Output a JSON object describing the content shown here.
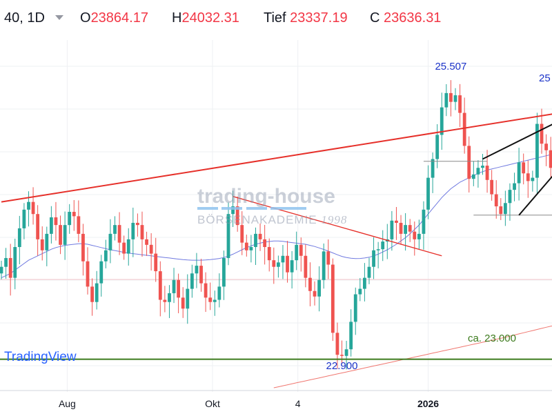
{
  "header": {
    "symbol": "40, 1D",
    "open_label": "O",
    "open_value": "23864.17",
    "high_label": "H",
    "high_value": "24032.31",
    "low_label": "Tief",
    "low_value": "23337.19",
    "close_label": "C",
    "close_value": "23636.31"
  },
  "watermark": {
    "title": "trading-house",
    "subtitle": "BÖRSENAKADEMIE",
    "year": "1998"
  },
  "branding": {
    "logo_text": "TradingView"
  },
  "colors": {
    "up": "#26a69a",
    "down": "#ef5350",
    "sma50": "#6f79e0",
    "sma200": "#f0766f",
    "trendline": "#e6302a",
    "support": "#3b7a1c",
    "neutral_line": "#888888",
    "wedge": "#111111",
    "annotation": "#1a32c8",
    "label_negative": "#f23645"
  },
  "chart_data": {
    "type": "candlestick",
    "x_tick_labels": [
      "Aug",
      "Okt",
      "4",
      "2026"
    ],
    "annotations": [
      {
        "text": "25.507",
        "color": "#1a32c8"
      },
      {
        "text": "25",
        "color": "#1a32c8"
      },
      {
        "text": "22.900",
        "color": "#1a32c8"
      },
      {
        "text": "ca. 23.000",
        "color": "#3b7a1c"
      }
    ],
    "horizontal_lines": [
      {
        "name": "support",
        "price": 22960
      },
      {
        "name": "range-high",
        "price": 24760
      },
      {
        "name": "range-low",
        "price": 24270
      }
    ],
    "trendlines": [
      {
        "name": "upper-trendline",
        "from": [
          0,
          24390
        ],
        "to": [
          123,
          25200
        ]
      },
      {
        "name": "falling-trendline",
        "from": [
          51,
          24440
        ],
        "to": [
          97,
          23900
        ]
      },
      {
        "name": "wedge-upper",
        "from": [
          106,
          24780
        ],
        "to": [
          124,
          25150
        ]
      },
      {
        "name": "wedge-lower",
        "from": [
          114,
          24270
        ],
        "to": [
          124,
          24750
        ]
      }
    ],
    "ylim": [
      22700,
      25850
    ],
    "n_days": 124,
    "close": [
      23800,
      23880,
      23700,
      23980,
      24150,
      24320,
      24390,
      24280,
      24050,
      23950,
      24100,
      24250,
      24180,
      24000,
      24180,
      24300,
      24260,
      24100,
      23850,
      23620,
      23480,
      23650,
      23850,
      23950,
      24100,
      24180,
      24020,
      23920,
      24050,
      24200,
      24180,
      24050,
      24000,
      23920,
      23760,
      23500,
      23480,
      23560,
      23680,
      23520,
      23420,
      23600,
      23740,
      23810,
      23650,
      23520,
      23480,
      23500,
      23620,
      23880,
      24280,
      24350,
      24180,
      24020,
      23950,
      23980,
      24100,
      24050,
      23980,
      23860,
      23800,
      23840,
      23900,
      23750,
      23860,
      24000,
      23900,
      23700,
      23580,
      23530,
      23680,
      23940,
      23820,
      23200,
      23000,
      22990,
      23050,
      23300,
      23550,
      23600,
      23700,
      23800,
      23950,
      23960,
      24030,
      24050,
      24220,
      24200,
      24100,
      24180,
      24120,
      24050,
      24100,
      24320,
      24610,
      24780,
      25000,
      25250,
      25380,
      25300,
      25360,
      25200,
      24900,
      24600,
      24640,
      24700,
      24720,
      24590,
      24460,
      24350,
      24280,
      24380,
      24500,
      24560,
      24750,
      24650,
      24580,
      24610,
      25100,
      24920,
      24860,
      24700,
      24820,
      24750
    ],
    "sma50": [
      23700,
      23720,
      23740,
      23770,
      23800,
      23830,
      23860,
      23880,
      23900,
      23920,
      23940,
      23960,
      23975,
      23985,
      23995,
      24000,
      24005,
      24010,
      24010,
      24005,
      23995,
      23985,
      23975,
      23965,
      23955,
      23948,
      23940,
      23932,
      23925,
      23920,
      23915,
      23910,
      23905,
      23900,
      23895,
      23890,
      23885,
      23880,
      23875,
      23870,
      23865,
      23862,
      23860,
      23860,
      23860,
      23862,
      23865,
      23870,
      23876,
      23885,
      23898,
      23915,
      23935,
      23955,
      23975,
      23990,
      24005,
      24015,
      24025,
      24030,
      24035,
      24035,
      24032,
      24026,
      24020,
      24015,
      24010,
      24005,
      23995,
      23985,
      23972,
      23958,
      23943,
      23927,
      23910,
      23895,
      23885,
      23878,
      23875,
      23876,
      23880,
      23887,
      23900,
      23915,
      23935,
      23955,
      23980,
      24005,
      24035,
      24065,
      24100,
      24140,
      24180,
      24230,
      24280,
      24330,
      24380,
      24430,
      24470,
      24510,
      24540,
      24570,
      24590,
      24610,
      24630,
      24650,
      24665,
      24680,
      24690,
      24700,
      24710,
      24720,
      24730,
      24740,
      24750,
      24760,
      24770,
      24780,
      24790,
      24800,
      24810,
      24820,
      24830,
      24840
    ],
    "sma200_from_day": 60,
    "sma200": [
      22700,
      22709,
      22718,
      22727,
      22736,
      22745,
      22754,
      22763,
      22772,
      22781,
      22790,
      22799,
      22808,
      22817,
      22826,
      22835,
      22844,
      22853,
      22862,
      22871,
      22880,
      22889,
      22898,
      22907,
      22916,
      22925,
      22934,
      22943,
      22952,
      22961,
      22970,
      22979,
      22988,
      22997,
      23006,
      23015,
      23024,
      23033,
      23042,
      23051,
      23060,
      23069,
      23078,
      23087,
      23096,
      23105,
      23114,
      23123,
      23132,
      23141,
      23150,
      23160,
      23170,
      23180,
      23190,
      23200,
      23210,
      23220,
      23230,
      23240,
      23250,
      23260,
      23270,
      23280
    ]
  }
}
